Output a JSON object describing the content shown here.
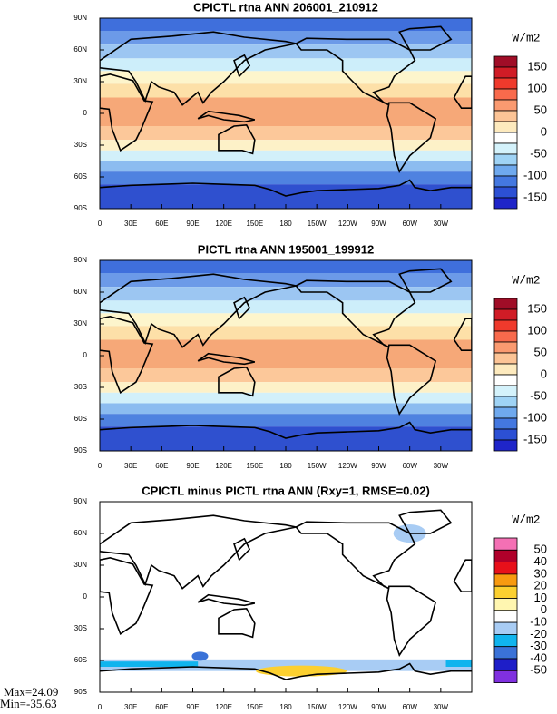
{
  "panels": [
    {
      "title": "CPICTL rtna ANN 206001_210912",
      "units": "W/m2",
      "colorbar_labels": [
        150,
        100,
        50,
        0,
        -50,
        -100,
        -150
      ]
    },
    {
      "title": "PICTL rtna ANN 195001_199912",
      "units": "W/m2",
      "colorbar_labels": [
        150,
        100,
        50,
        0,
        -50,
        -100,
        -150
      ]
    },
    {
      "title": "CPICTL minus PICTL rtna ANN (Rxy=1, RMSE=0.02)",
      "units": "W/m2",
      "colorbar_labels": [
        50,
        40,
        30,
        20,
        10,
        0,
        -10,
        -20,
        -30,
        -40,
        -50
      ]
    }
  ],
  "lat_labels": [
    "90N",
    "60N",
    "30N",
    "0",
    "30S",
    "60S",
    "90S"
  ],
  "lon_labels": [
    "0",
    "30E",
    "60E",
    "90E",
    "120E",
    "150E",
    "180",
    "150W",
    "120W",
    "90W",
    "60W",
    "30W"
  ],
  "stats": {
    "max": "Max=24.09",
    "min": "Min=-35.63"
  }
}
